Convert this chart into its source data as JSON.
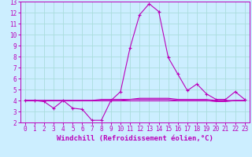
{
  "xlabel": "Windchill (Refroidissement éolien,°C)",
  "ylabel": "",
  "background_color": "#cceeff",
  "line_color": "#bb00bb",
  "grid_color": "#aadddd",
  "xlim": [
    -0.5,
    23.5
  ],
  "ylim": [
    2,
    13
  ],
  "xticks": [
    0,
    1,
    2,
    3,
    4,
    5,
    6,
    7,
    8,
    9,
    10,
    11,
    12,
    13,
    14,
    15,
    16,
    17,
    18,
    19,
    20,
    21,
    22,
    23
  ],
  "yticks": [
    2,
    3,
    4,
    5,
    6,
    7,
    8,
    9,
    10,
    11,
    12,
    13
  ],
  "line1_x": [
    0,
    1,
    2,
    3,
    4,
    5,
    6,
    7,
    8,
    9,
    10,
    11,
    12,
    13,
    14,
    15,
    16,
    17,
    18,
    19,
    20,
    21,
    22,
    23
  ],
  "line1_y": [
    4.0,
    4.0,
    3.9,
    3.3,
    4.0,
    3.3,
    3.2,
    2.2,
    2.2,
    4.0,
    4.8,
    8.8,
    11.8,
    12.8,
    12.1,
    7.9,
    6.4,
    4.9,
    5.5,
    4.6,
    4.1,
    4.1,
    4.8,
    4.1
  ],
  "line2_x": [
    0,
    1,
    2,
    3,
    4,
    5,
    6,
    7,
    8,
    9,
    10,
    11,
    12,
    13,
    14,
    15,
    16,
    17,
    18,
    19,
    20,
    21,
    22,
    23
  ],
  "line2_y": [
    4.0,
    4.0,
    4.0,
    4.0,
    4.0,
    4.0,
    4.0,
    4.0,
    4.1,
    4.1,
    4.1,
    4.1,
    4.2,
    4.2,
    4.2,
    4.2,
    4.1,
    4.1,
    4.1,
    4.1,
    4.0,
    4.0,
    4.0,
    4.0
  ],
  "line3_x": [
    0,
    1,
    2,
    3,
    4,
    5,
    6,
    7,
    8,
    9,
    10,
    11,
    12,
    13,
    14,
    15,
    16,
    17,
    18,
    19,
    20,
    21,
    22,
    23
  ],
  "line3_y": [
    4.0,
    4.0,
    4.0,
    4.0,
    4.0,
    4.0,
    4.0,
    4.0,
    4.0,
    4.0,
    4.0,
    4.1,
    4.1,
    4.1,
    4.1,
    4.1,
    4.0,
    4.0,
    4.0,
    4.0,
    3.9,
    3.9,
    4.0,
    4.0
  ],
  "line4_x": [
    0,
    1,
    2,
    3,
    4,
    5,
    6,
    7,
    8,
    9,
    10,
    11,
    12,
    13,
    14,
    15,
    16,
    17,
    18,
    19,
    20,
    21,
    22,
    23
  ],
  "line4_y": [
    4.0,
    4.0,
    4.0,
    4.0,
    4.0,
    4.0,
    4.0,
    4.0,
    4.0,
    4.0,
    4.0,
    4.0,
    4.0,
    4.0,
    4.0,
    4.0,
    4.0,
    4.0,
    4.0,
    4.0,
    4.0,
    4.0,
    4.0,
    4.0
  ],
  "marker": "+",
  "markersize": 3,
  "linewidth": 0.8,
  "tick_fontsize": 5.5,
  "xlabel_fontsize": 6.5
}
